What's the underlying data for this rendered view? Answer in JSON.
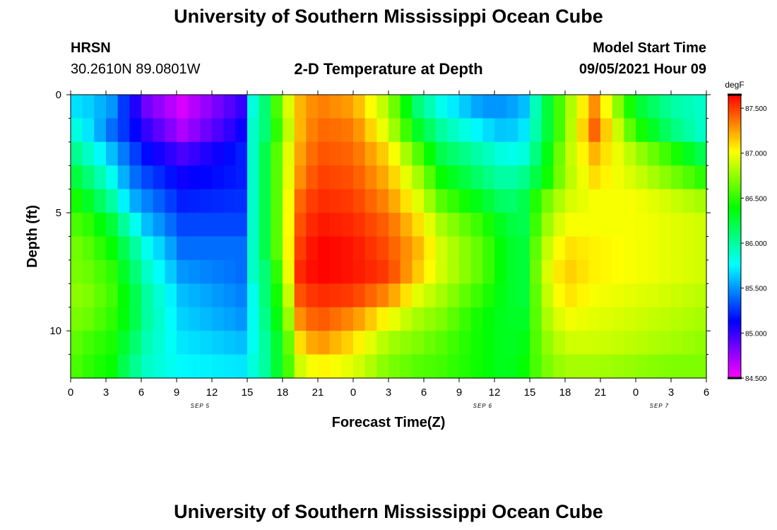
{
  "page": {
    "title_top": "University of Southern Mississippi Ocean Cube",
    "title_bottom": "University of Southern Mississippi Ocean Cube",
    "station_code": "HRSN",
    "station_coords": "30.2610N  89.0801W",
    "plot_title": "2-D Temperature at Depth",
    "model_label": "Model Start Time",
    "model_time": "09/05/2021 Hour 09"
  },
  "chart_data": {
    "type": "heatmap",
    "title": "2-D Temperature at Depth",
    "xlabel": "Forecast Time(Z)",
    "ylabel": "Depth (ft)",
    "x_ticks": [
      "0",
      "3",
      "6",
      "9",
      "12",
      "15",
      "18",
      "21",
      "0",
      "3",
      "6",
      "9",
      "12",
      "15",
      "18",
      "21",
      "0",
      "3",
      "6"
    ],
    "date_labels": [
      {
        "label": "SEP 5",
        "x_index": 11
      },
      {
        "label": "SEP 6",
        "x_index": 35
      },
      {
        "label": "SEP 7",
        "x_index": 50
      }
    ],
    "y_ticks": [
      "0",
      "5",
      "10"
    ],
    "ylim": [
      0,
      12
    ],
    "y_reversed": true,
    "x_range_hours": [
      0,
      54
    ],
    "colorbar": {
      "unit": "degF",
      "min": 84.5,
      "max": 87.65,
      "tick_labels": [
        "87.500",
        "87.000",
        "86.500",
        "86.000",
        "85.500",
        "85.000",
        "84.500"
      ],
      "tick_values": [
        87.5,
        87.0,
        86.5,
        86.0,
        85.5,
        85.0,
        84.5
      ]
    },
    "depth_rows_ft": [
      0.5,
      1.5,
      2.5,
      3.5,
      4.5,
      5.5,
      6.5,
      7.5,
      8.5,
      9.5,
      10.5,
      11.5
    ],
    "time_columns_hours": [
      0,
      1,
      2,
      3,
      4,
      5,
      6,
      7,
      8,
      9,
      10,
      11,
      12,
      13,
      14,
      15,
      16,
      17,
      18,
      19,
      20,
      21,
      22,
      23,
      24,
      25,
      26,
      27,
      28,
      29,
      30,
      31,
      32,
      33,
      34,
      35,
      36,
      37,
      38,
      39,
      40,
      41,
      42,
      43,
      44,
      45,
      46,
      47,
      48,
      49,
      50,
      51,
      52,
      53
    ],
    "temperature_anchor_hours": [
      0,
      1.5,
      3.5,
      5,
      6.5,
      9.5,
      14.5,
      15.5,
      16.5,
      18,
      19.5,
      21,
      24,
      27,
      29.5,
      31.5,
      35,
      37,
      38.5,
      40,
      42,
      44.5,
      48,
      51,
      53.5
    ],
    "temperature_profiles_degF": [
      [
        85.7,
        85.65,
        85.5,
        85.15,
        84.85,
        84.6,
        85.0,
        85.85,
        86.1,
        86.8,
        87.2,
        87.35,
        87.25,
        86.8,
        86.1,
        85.8,
        85.5,
        85.5,
        85.6,
        86.1,
        86.7,
        87.3,
        86.3,
        86.0,
        85.9
      ],
      [
        85.9,
        85.7,
        85.4,
        85.2,
        85.0,
        84.7,
        85.1,
        85.9,
        86.1,
        86.7,
        87.2,
        87.4,
        87.35,
        86.9,
        86.3,
        86.0,
        85.7,
        85.6,
        85.7,
        86.1,
        86.7,
        87.4,
        86.5,
        86.1,
        85.9
      ],
      [
        86.1,
        85.9,
        85.6,
        85.35,
        85.15,
        84.95,
        85.2,
        85.9,
        86.2,
        86.8,
        87.25,
        87.45,
        87.4,
        87.1,
        86.6,
        86.2,
        85.95,
        85.8,
        85.85,
        86.2,
        86.8,
        87.2,
        86.8,
        86.5,
        86.2
      ],
      [
        86.3,
        86.1,
        85.8,
        85.45,
        85.3,
        85.1,
        85.2,
        85.9,
        86.2,
        86.8,
        87.3,
        87.5,
        87.45,
        87.2,
        86.8,
        86.4,
        86.1,
        85.95,
        86.05,
        86.3,
        86.8,
        87.1,
        86.9,
        86.7,
        86.5
      ],
      [
        86.5,
        86.3,
        86.0,
        85.6,
        85.45,
        85.2,
        85.25,
        85.9,
        86.2,
        86.8,
        87.4,
        87.55,
        87.5,
        87.3,
        86.95,
        86.6,
        86.3,
        86.1,
        86.2,
        86.6,
        86.9,
        87.0,
        87.0,
        86.9,
        86.8
      ],
      [
        86.6,
        86.5,
        86.25,
        85.9,
        85.6,
        85.3,
        85.3,
        85.9,
        86.2,
        86.8,
        87.45,
        87.6,
        87.55,
        87.4,
        87.1,
        86.8,
        86.5,
        86.25,
        86.2,
        86.7,
        87.0,
        87.0,
        87.0,
        86.95,
        86.9
      ],
      [
        86.7,
        86.6,
        86.4,
        86.1,
        85.8,
        85.4,
        85.4,
        85.9,
        86.2,
        86.8,
        87.5,
        87.65,
        87.6,
        87.45,
        87.2,
        86.9,
        86.6,
        86.3,
        86.25,
        86.8,
        87.1,
        87.05,
        87.0,
        86.95,
        86.9
      ],
      [
        86.7,
        86.65,
        86.5,
        86.2,
        85.9,
        85.5,
        85.4,
        85.9,
        86.1,
        86.7,
        87.55,
        87.65,
        87.6,
        87.5,
        87.15,
        86.9,
        86.6,
        86.3,
        86.25,
        86.85,
        87.15,
        87.05,
        87.0,
        86.95,
        86.9
      ],
      [
        86.75,
        86.7,
        86.55,
        86.3,
        86.0,
        85.6,
        85.45,
        85.8,
        86.1,
        86.6,
        87.45,
        87.55,
        87.5,
        87.3,
        86.95,
        86.8,
        86.5,
        86.3,
        86.25,
        86.8,
        87.1,
        87.0,
        86.95,
        86.9,
        86.85
      ],
      [
        86.7,
        86.65,
        86.5,
        86.3,
        86.0,
        85.65,
        85.5,
        85.8,
        86.05,
        86.5,
        87.3,
        87.45,
        87.3,
        87.0,
        86.8,
        86.7,
        86.4,
        86.3,
        86.3,
        86.75,
        87.0,
        86.95,
        86.9,
        86.85,
        86.8
      ],
      [
        86.65,
        86.55,
        86.45,
        86.2,
        85.95,
        85.7,
        85.6,
        85.8,
        86.0,
        86.4,
        87.1,
        87.3,
        87.1,
        86.8,
        86.7,
        86.6,
        86.4,
        86.3,
        86.35,
        86.7,
        86.9,
        86.9,
        86.85,
        86.8,
        86.75
      ],
      [
        86.6,
        86.5,
        86.4,
        86.1,
        85.9,
        85.75,
        85.7,
        85.85,
        86.0,
        86.4,
        86.9,
        87.05,
        86.95,
        86.7,
        86.6,
        86.55,
        86.4,
        86.3,
        86.4,
        86.65,
        86.8,
        86.8,
        86.75,
        86.7,
        86.7
      ]
    ]
  }
}
